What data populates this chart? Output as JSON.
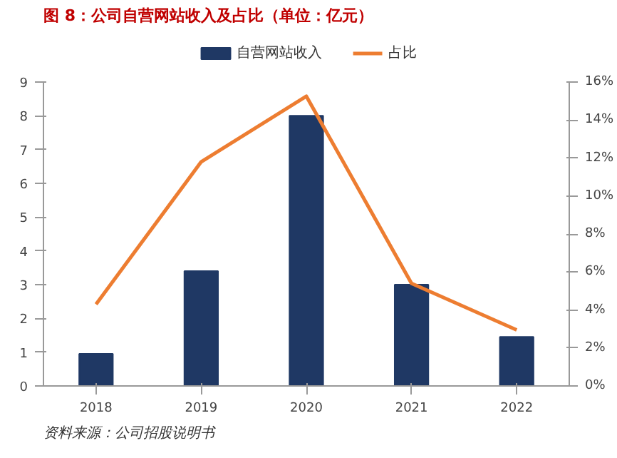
{
  "chart_data": {
    "type": "bar",
    "title": "图 8：公司自营网站收入及占比（单位：亿元）",
    "categories": [
      "2018",
      "2019",
      "2020",
      "2021",
      "2022"
    ],
    "series": [
      {
        "name": "自营网站收入",
        "color": "#1f3864",
        "values": [
          0.95,
          3.4,
          8.0,
          3.0,
          1.45
        ]
      },
      {
        "name": "占比",
        "type": "line",
        "axis": "y2",
        "color": "#ed7d31",
        "values": [
          4.3,
          11.8,
          15.25,
          5.4,
          2.95
        ]
      }
    ],
    "ylim": [
      0,
      9
    ],
    "yticks": [
      0,
      1,
      2,
      3,
      4,
      5,
      6,
      7,
      8,
      9
    ],
    "y2lim": [
      0,
      16
    ],
    "y2ticks": [
      {
        "value": 0,
        "label": "0%"
      },
      {
        "value": 2,
        "label": "2%"
      },
      {
        "value": 4,
        "label": "4%"
      },
      {
        "value": 6,
        "label": "6%"
      },
      {
        "value": 8,
        "label": "8%"
      },
      {
        "value": 10,
        "label": "10%"
      },
      {
        "value": 12,
        "label": "12%"
      },
      {
        "value": 14,
        "label": "14%"
      },
      {
        "value": 16,
        "label": "16%"
      }
    ],
    "legend": "top",
    "grid": false,
    "marker": "none",
    "line_style": "solid",
    "annotations": [
      "资料来源：公司招股说明书"
    ]
  }
}
